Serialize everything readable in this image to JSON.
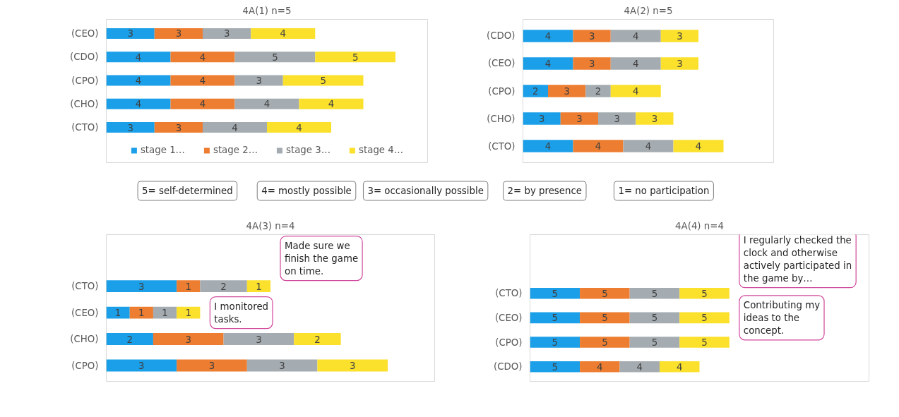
{
  "chart_data": [
    {
      "type": "bar",
      "orientation": "horizontal",
      "stacked": true,
      "title": "4A(1) n=5",
      "categories": [
        "(CEO)",
        "(CDO)",
        "(CPO)",
        "(CHO)",
        "(CTO)"
      ],
      "xlim": [
        0,
        20
      ],
      "tick_labels": "y",
      "data_labels": true,
      "legend": "bottom",
      "series": [
        {
          "name": "stage 1…",
          "color": "#1a9fe8",
          "values": [
            3,
            4,
            4,
            4,
            3
          ]
        },
        {
          "name": "stage 2…",
          "color": "#ed7d31",
          "values": [
            3,
            4,
            4,
            4,
            3
          ]
        },
        {
          "name": "stage 3…",
          "color": "#a5acb1",
          "values": [
            3,
            5,
            3,
            4,
            4
          ]
        },
        {
          "name": "stage 4…",
          "color": "#fbe02c",
          "values": [
            4,
            5,
            5,
            4,
            4
          ]
        }
      ]
    },
    {
      "type": "bar",
      "orientation": "horizontal",
      "stacked": true,
      "title": "4A(2) n=5",
      "categories": [
        "(CDO)",
        "(CEO)",
        "(CPO)",
        "(CHO)",
        "(CTO)"
      ],
      "xlim": [
        0,
        20
      ],
      "tick_labels": "y",
      "data_labels": true,
      "series": [
        {
          "color": "#1a9fe8",
          "values": [
            4,
            4,
            2,
            3,
            4
          ]
        },
        {
          "color": "#ed7d31",
          "values": [
            3,
            3,
            3,
            3,
            4
          ]
        },
        {
          "color": "#a5acb1",
          "values": [
            4,
            4,
            2,
            3,
            4
          ]
        },
        {
          "color": "#fbe02c",
          "values": [
            3,
            3,
            4,
            3,
            4
          ]
        }
      ]
    },
    {
      "type": "other",
      "annotations": [
        "5= self-determined",
        "4= mostly possible",
        "3= occasionally possible",
        "2= by presence",
        "1= no participation"
      ]
    },
    {
      "type": "bar",
      "orientation": "horizontal",
      "stacked": true,
      "title": "4A(3) n=4",
      "categories": [
        "(CTO)",
        "(CEO)",
        "(CHO)",
        "(CPO)"
      ],
      "xlim": [
        0,
        14
      ],
      "tick_labels": "y",
      "data_labels": true,
      "series": [
        {
          "color": "#1a9fe8",
          "values": [
            3,
            1,
            2,
            3
          ]
        },
        {
          "color": "#ed7d31",
          "values": [
            1,
            1,
            3,
            3
          ]
        },
        {
          "color": "#a5acb1",
          "values": [
            2,
            1,
            3,
            3
          ]
        },
        {
          "color": "#fbe02c",
          "values": [
            1,
            1,
            2,
            3
          ]
        }
      ],
      "annotations": [
        "Made sure we finish the game on time.",
        "I monitored tasks."
      ]
    },
    {
      "type": "bar",
      "orientation": "horizontal",
      "stacked": true,
      "title": "4A(4) n=4",
      "categories": [
        "(CTO)",
        "(CEO)",
        "(CPO)",
        "(CDO)"
      ],
      "xlim": [
        0,
        34
      ],
      "tick_labels": "y",
      "data_labels": true,
      "series": [
        {
          "color": "#1a9fe8",
          "values": [
            5,
            5,
            5,
            5
          ]
        },
        {
          "color": "#ed7d31",
          "values": [
            5,
            5,
            5,
            4
          ]
        },
        {
          "color": "#a5acb1",
          "values": [
            5,
            5,
            5,
            4
          ]
        },
        {
          "color": "#fbe02c",
          "values": [
            5,
            5,
            5,
            4
          ]
        }
      ],
      "annotations": [
        "I regularly checked the clock and otherwise actively participated in the game by…",
        "Contributing my ideas to the concept."
      ]
    }
  ]
}
